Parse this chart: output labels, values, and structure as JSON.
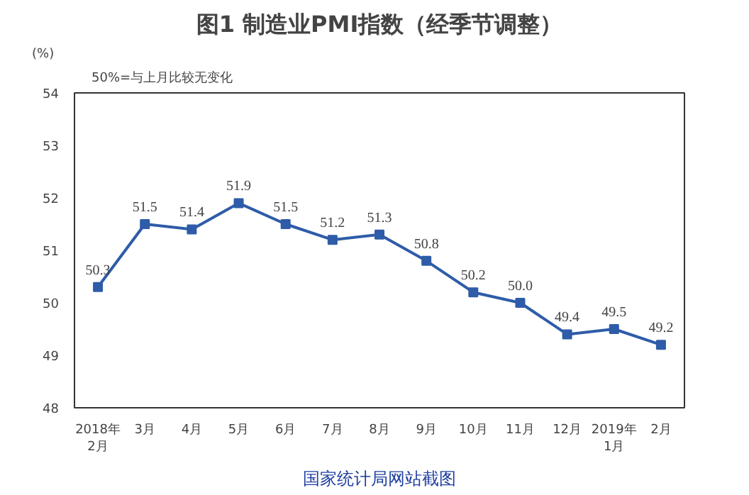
{
  "chart_data": {
    "type": "line",
    "title": "图1 制造业PMI指数（经季节调整）",
    "subtitle": "50%=与上月比较无变化",
    "ylabel": "(%)",
    "categories": [
      "2018年\n2月",
      "3月",
      "4月",
      "5月",
      "6月",
      "7月",
      "8月",
      "9月",
      "10月",
      "11月",
      "12月",
      "2019年\n1月",
      "2月"
    ],
    "series": [
      {
        "color": "#2e5ca8",
        "values": [
          50.3,
          51.5,
          51.4,
          51.9,
          51.5,
          51.2,
          51.3,
          50.8,
          50.2,
          50.0,
          49.4,
          49.5,
          49.2
        ]
      }
    ],
    "value_labels": [
      "50.3",
      "51.5",
      "51.4",
      "51.9",
      "51.5",
      "51.2",
      "51.3",
      "50.8",
      "50.2",
      "50.0",
      "49.4",
      "49.5",
      "49.2"
    ],
    "ylim": [
      48,
      54
    ],
    "yticks": [
      48,
      49,
      50,
      51,
      52,
      53,
      54
    ],
    "marker": "square",
    "grid": false,
    "annotations": [
      "国家统计局网站截图"
    ]
  }
}
